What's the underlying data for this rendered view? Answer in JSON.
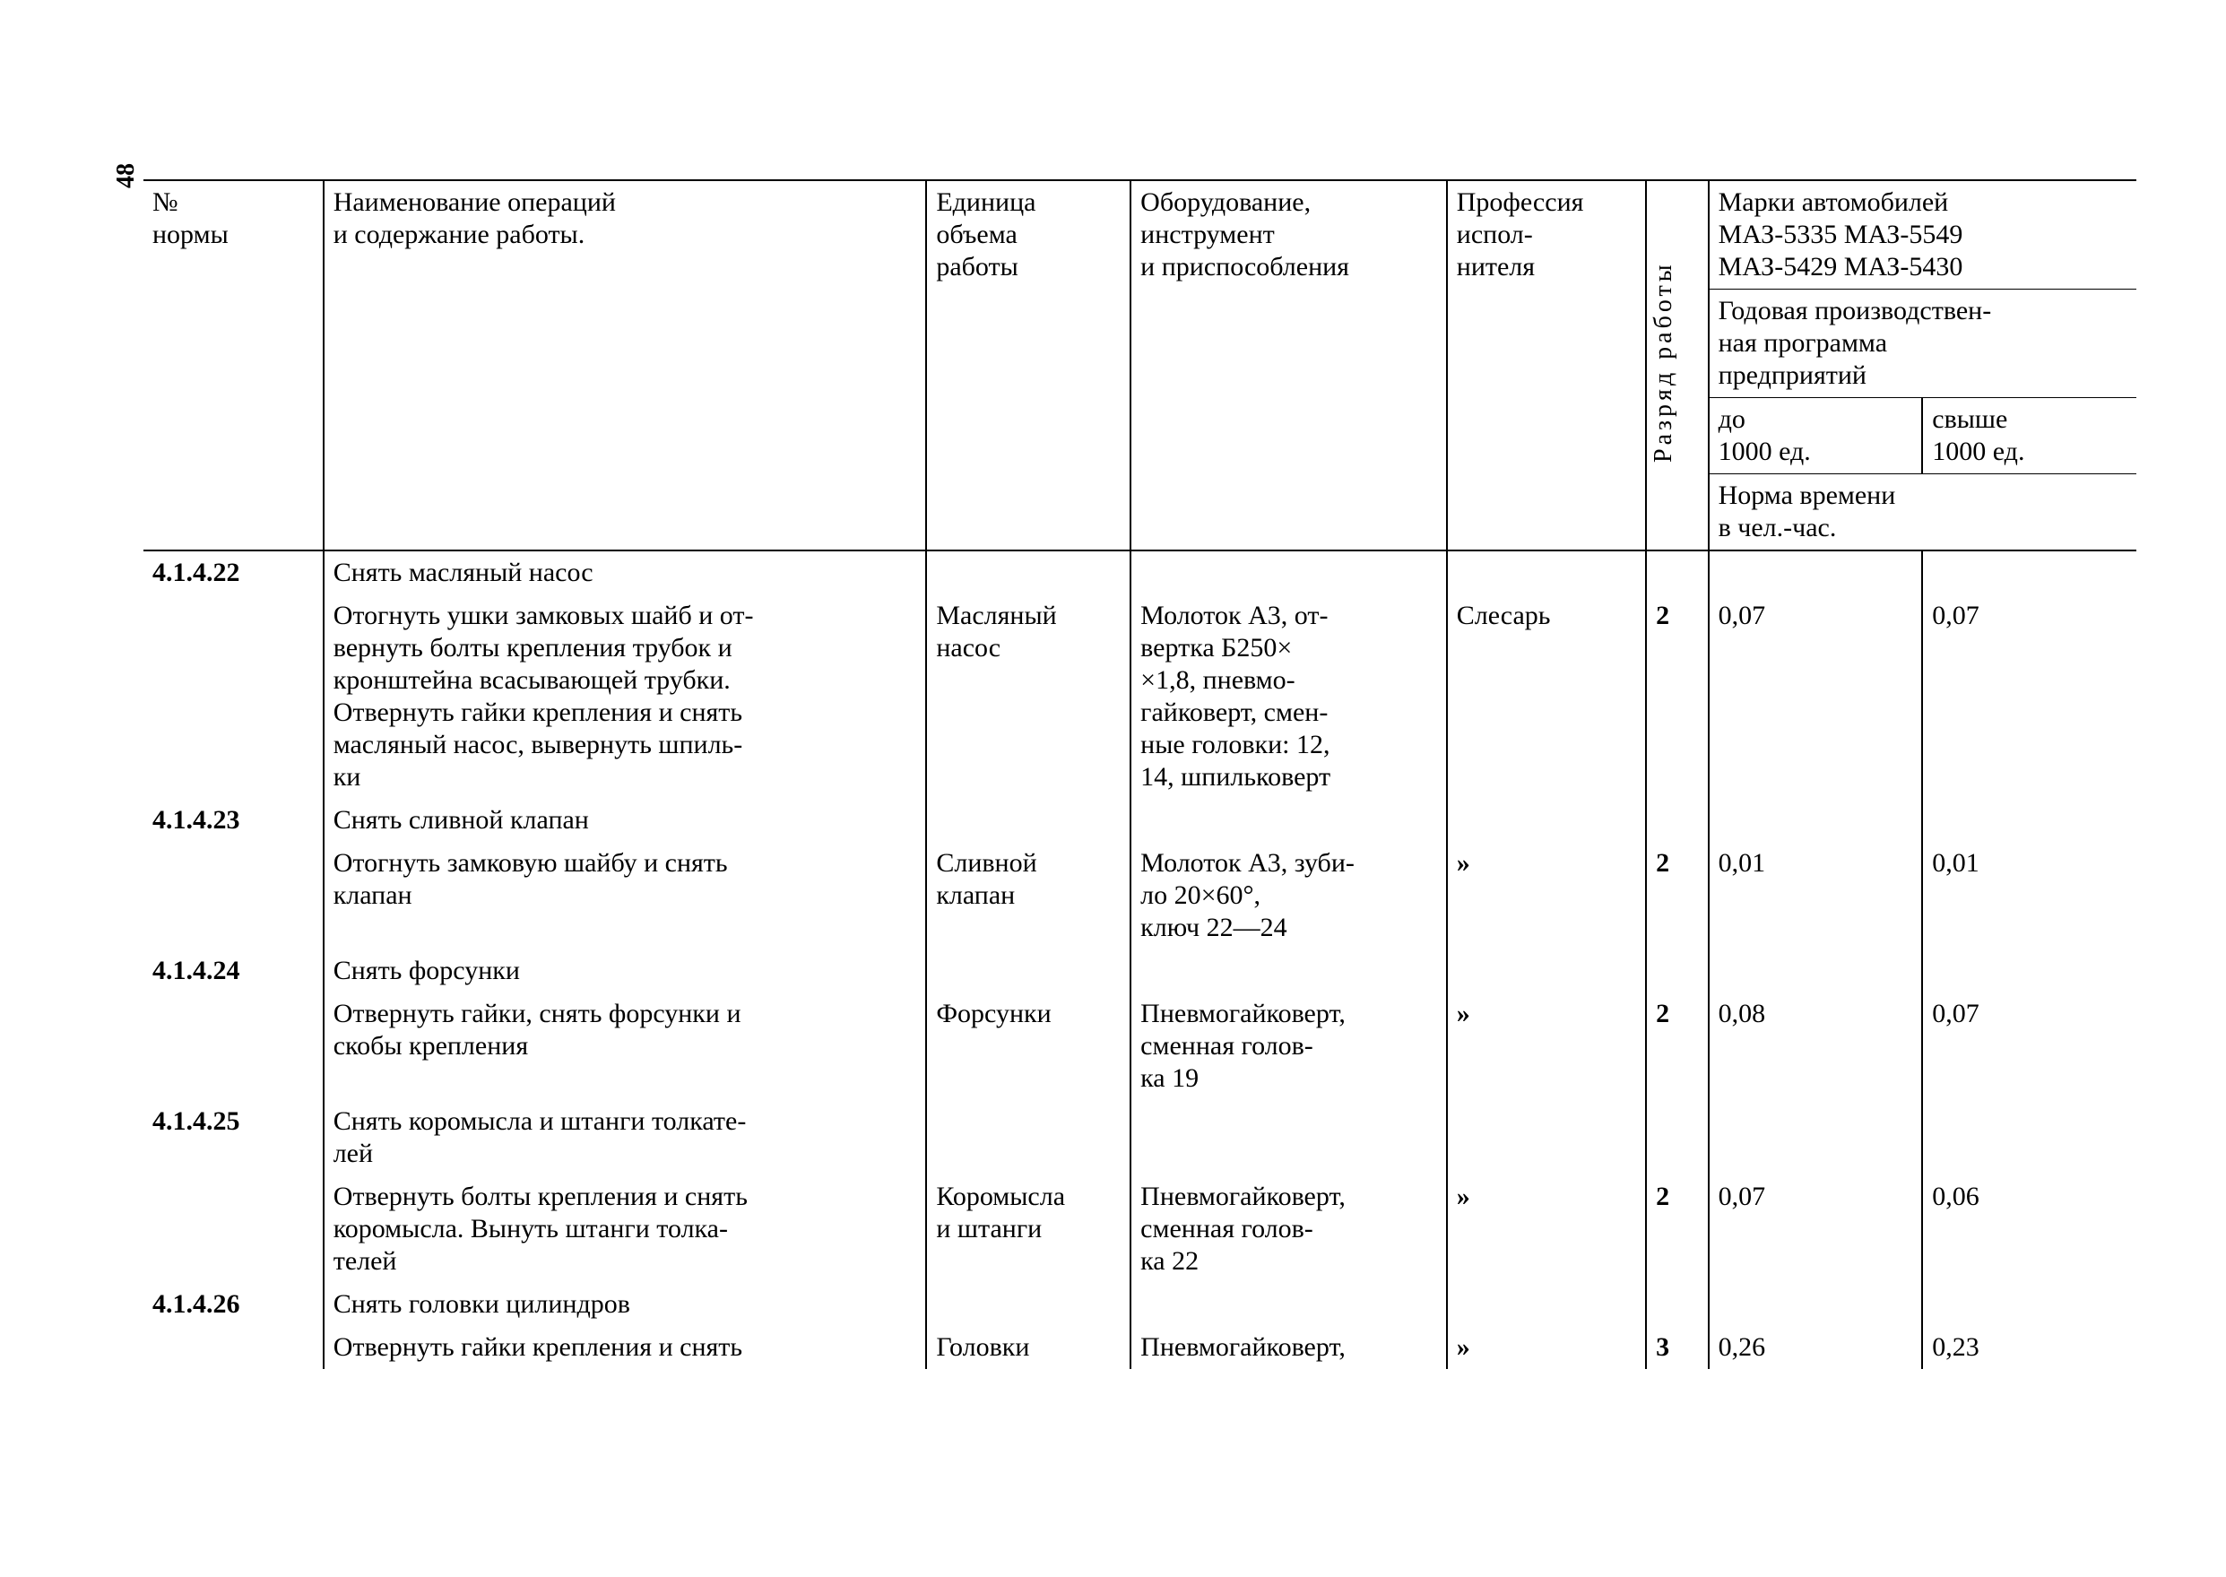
{
  "page_number": "48",
  "columns": {
    "num": "№\nнормы",
    "name": "Наименование операций\nи содержание работы.",
    "unit": "Единица\nобъема\nработы",
    "equip": "Оборудование,\nинструмент\nи приспособления",
    "prof": "Профессия\nиспол-\nнителя",
    "grade": "Разряд работы",
    "models": "Марки автомобилей\nМАЗ-5335  МАЗ-5549\nМАЗ-5429  МАЗ-5430",
    "prog": "Годовая производствен-\nная программа\nпредприятий",
    "upto": "до\n1000 ед.",
    "over": "свыше\n1000 ед.",
    "norm": "Норма времени\nв чел.-час."
  },
  "rows": [
    {
      "num": "4.1.4.22",
      "title": "Снять масляный насос",
      "desc": "Отогнуть ушки замковых шайб и от-\nвернуть болты крепления трубок и\nкронштейна всасывающей трубки.\nОтвернуть гайки крепления и снять\nмасляный насос, вывернуть шпиль-\nки",
      "unit": "Масляный\nнасос",
      "equip": "Молоток А3, от-\nвертка Б250×\n×1,8, пневмо-\nгайковерт, смен-\nные головки: 12,\n14, шпильковерт",
      "prof": "Слесарь",
      "grade": "2",
      "n1": "0,07",
      "n2": "0,07"
    },
    {
      "num": "4.1.4.23",
      "title": "Снять сливной клапан",
      "desc": "Отогнуть замковую шайбу и снять\nклапан",
      "unit": "Сливной\nклапан",
      "equip": "Молоток А3, зуби-\nло 20×60°,\nключ 22—24",
      "prof": "»",
      "grade": "2",
      "n1": "0,01",
      "n2": "0,01"
    },
    {
      "num": "4.1.4.24",
      "title": "Снять форсунки",
      "desc": "Отвернуть гайки, снять форсунки и\nскобы крепления",
      "unit": "Форсунки",
      "equip": "Пневмогайковерт,\nсменная голов-\nка 19",
      "prof": "»",
      "grade": "2",
      "n1": "0,08",
      "n2": "0,07"
    },
    {
      "num": "4.1.4.25",
      "title": "Снять коромысла и штанги толкате-\nлей",
      "desc": "Отвернуть болты крепления и снять\nкоромысла. Вынуть штанги толка-\nтелей",
      "unit": "Коромысла\nи штанги",
      "equip": "Пневмогайковерт,\nсменная голов-\nка 22",
      "prof": "»",
      "grade": "2",
      "n1": "0,07",
      "n2": "0,06"
    },
    {
      "num": "4.1.4.26",
      "title": "Снять головки цилиндров",
      "desc": "Отвернуть гайки крепления и снять",
      "unit": "Головки",
      "equip": "Пневмогайковерт,",
      "prof": "»",
      "grade": "3",
      "n1": "0,26",
      "n2": "0,23"
    }
  ]
}
